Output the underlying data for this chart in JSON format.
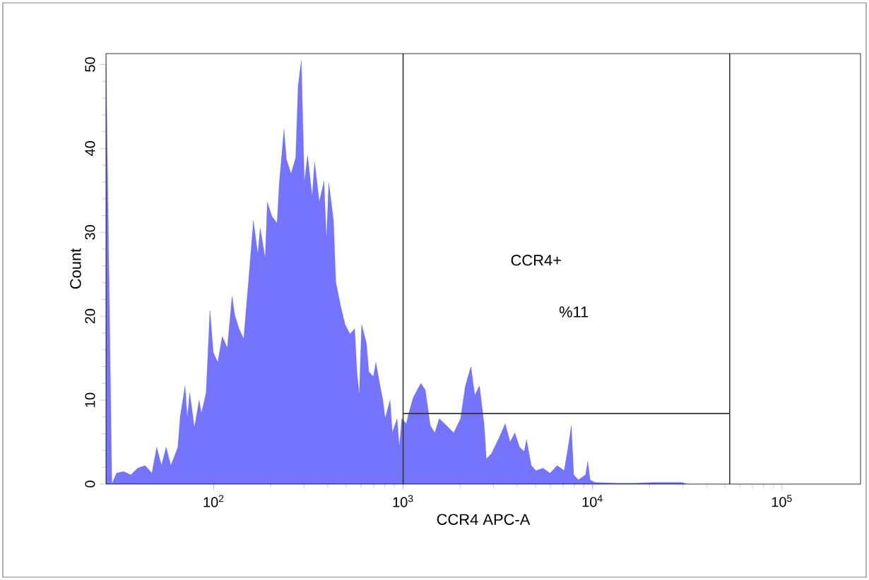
{
  "chart_data": {
    "type": "area",
    "xlabel": "CCR4 APC-A",
    "ylabel": "Count",
    "log": "x",
    "xlim": [
      27,
      260000
    ],
    "ylim": [
      0,
      51.3
    ],
    "xticks": [
      {
        "value": 100,
        "label": "10$^{2}$"
      },
      {
        "value": 1000,
        "label": "10$^{3}$"
      },
      {
        "value": 10000,
        "label": "10$^{4}$"
      },
      {
        "value": 100000,
        "label": "10$^{5}$"
      }
    ],
    "yticks": [
      0,
      10,
      20,
      30,
      40,
      50
    ],
    "annotations": [
      "CCR4+",
      "%11"
    ],
    "ref_lines": [
      {
        "axis": "x",
        "value": 1000,
        "color": "#333333"
      },
      {
        "axis": "x",
        "value": 53000,
        "color": "#333333"
      }
    ],
    "series": [
      {
        "color": "#1f1fff",
        "x": [
          27,
          28,
          29,
          30.7,
          33.5,
          36.5,
          39.7,
          43.4,
          47.2,
          50,
          53,
          56.1,
          59.4,
          64.7,
          66.6,
          70.6,
          72.6,
          74.7,
          79.1,
          83.8,
          86.1,
          91.2,
          95.5,
          99.5,
          105,
          111,
          118,
          125,
          129,
          136,
          144,
          153,
          162,
          171,
          176,
          187,
          192,
          203,
          216,
          222,
          235,
          242,
          256,
          271,
          279,
          290,
          301,
          313,
          331,
          341,
          361,
          382,
          394,
          405,
          429,
          441,
          467,
          494,
          524,
          555,
          570,
          587,
          604,
          640,
          659,
          697,
          718,
          760,
          782,
          804,
          853,
          877,
          929,
          955,
          984,
          1040,
          1070,
          1130,
          1240,
          1310,
          1390,
          1470,
          1550,
          1690,
          1850,
          2010,
          2130,
          2280,
          2390,
          2530,
          2680,
          2750,
          2920,
          3180,
          3460,
          3670,
          3890,
          4120,
          4360,
          4480,
          4750,
          5030,
          5480,
          5970,
          6510,
          7090,
          7510,
          7730,
          7960,
          8420,
          9180,
          9440,
          9710,
          10300,
          13300,
          16700,
          21000,
          29700,
          31500
        ],
        "values": [
          51,
          25,
          0,
          1.3,
          1.5,
          1.1,
          1.9,
          2.2,
          1.3,
          4.4,
          2.2,
          4.4,
          2.2,
          4.4,
          8.1,
          11.7,
          7.8,
          10.9,
          6.7,
          10.0,
          8.4,
          10.9,
          20.7,
          15.7,
          14.5,
          17.6,
          16.2,
          22.4,
          20.2,
          18.5,
          17.3,
          24.4,
          31.4,
          27.4,
          30.5,
          26.9,
          33.6,
          31.9,
          31.1,
          35.9,
          42.3,
          38.7,
          37.0,
          38.9,
          47.4,
          50.5,
          35.9,
          39.2,
          34.2,
          38.4,
          33.6,
          36.1,
          29.1,
          35.9,
          31.4,
          24.1,
          21.3,
          19.0,
          17.9,
          18.5,
          13.4,
          10.6,
          19.0,
          16.8,
          13.4,
          12.8,
          14.5,
          11.4,
          10.0,
          7.8,
          10.0,
          6.1,
          7.8,
          4.4,
          7.8,
          7.2,
          8.4,
          10.3,
          12.0,
          11.2,
          7.0,
          6.1,
          7.8,
          7.0,
          6.1,
          7.8,
          11.7,
          14.0,
          10.6,
          11.7,
          7.0,
          3.0,
          3.6,
          5.3,
          7.2,
          5.0,
          6.1,
          4.4,
          3.9,
          5.3,
          2.2,
          1.6,
          1.9,
          1.3,
          2.2,
          1.6,
          5.0,
          7.0,
          1.1,
          0.5,
          1.1,
          2.7,
          0.5,
          0.2,
          0.1,
          0.1,
          0.2,
          0.2,
          0
        ]
      },
      {
        "type": "line",
        "color": "#333333",
        "x": [
          1000,
          53000
        ],
        "values": [
          8.4,
          8.4
        ]
      }
    ]
  }
}
